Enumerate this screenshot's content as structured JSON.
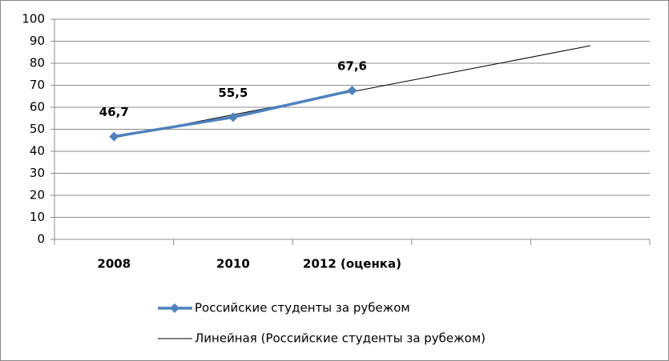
{
  "chart_data": {
    "type": "line",
    "categories": [
      "2008",
      "2010",
      "2012 (оценка)",
      null,
      null
    ],
    "series": [
      {
        "name": "Российские студенты за рубежом",
        "color": "#4f81bd",
        "marker": "diamond",
        "values": [
          46.7,
          55.5,
          67.6,
          null,
          null
        ],
        "value_labels": [
          "46,7",
          "55,5",
          "67,6",
          null,
          null
        ]
      },
      {
        "name": "Линейная (Российские студенты за рубежом)",
        "color": "#000000",
        "marker": "none",
        "values": [
          46.15,
          56.6,
          67.05,
          77.5,
          87.95
        ]
      }
    ],
    "ylim": [
      0,
      100
    ],
    "yticks": [
      0,
      10,
      20,
      30,
      40,
      50,
      60,
      70,
      80,
      90,
      100
    ],
    "grid": true,
    "legend": "bottom"
  }
}
